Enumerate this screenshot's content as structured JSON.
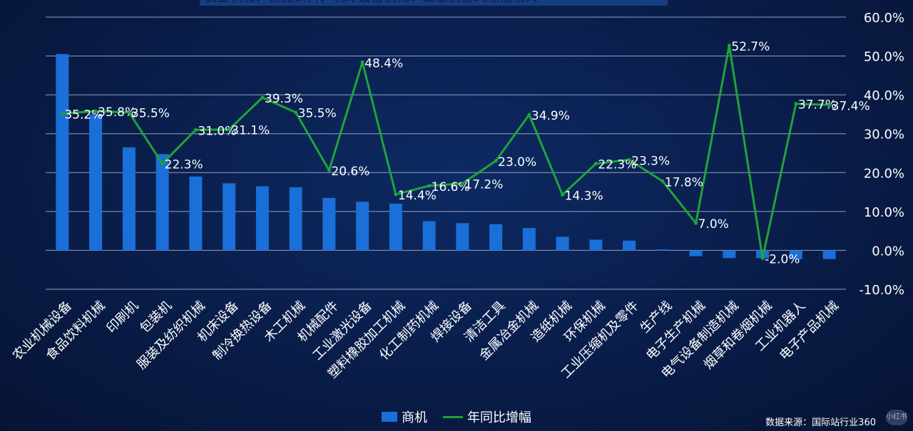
{
  "title_text": "农业机械、食品饮料、制冷设备机械、工业机器人涨幅较大",
  "source": "数据来源：国际站行业360",
  "badge": "小红书",
  "legend": {
    "bar_label": "商机",
    "line_label": "年同比增幅"
  },
  "colors": {
    "bar": "#1a6fd8",
    "line": "#1fa33a",
    "grid": "#a9b8d6",
    "text": "#ffffff"
  },
  "chart_data": {
    "type": "bar",
    "categories": [
      "农业机械设备",
      "食品饮料机械",
      "印刷机",
      "包装机",
      "服装及纺织机械",
      "机床设备",
      "制冷换热设备",
      "木工机械",
      "机械配件",
      "工业激光设备",
      "塑料橡胶加工机械",
      "化工制药机械",
      "焊接设备",
      "清洁工具",
      "金属冶金机械",
      "造纸机械",
      "环保机械",
      "工业压缩机及零件",
      "生产线",
      "电子生产机械",
      "电气设备制造机械",
      "烟草和卷烟机械",
      "工业机器人",
      "电子产品机械"
    ],
    "series": [
      {
        "name": "商机",
        "type": "bar",
        "axis": "left",
        "values": [
          101,
          70,
          53,
          49.5,
          38,
          34.5,
          33,
          32.5,
          27,
          25,
          24,
          15,
          14,
          13.5,
          11.5,
          7,
          5.5,
          5,
          0.5,
          -3,
          -4,
          -4,
          -4.5,
          -4.5
        ]
      },
      {
        "name": "年同比增幅",
        "type": "line",
        "axis": "right",
        "values": [
          35.2,
          35.8,
          35.5,
          22.3,
          31.0,
          31.1,
          39.3,
          35.5,
          20.6,
          48.4,
          14.4,
          16.6,
          17.2,
          23.0,
          34.9,
          14.3,
          22.3,
          23.3,
          17.8,
          7.0,
          52.7,
          -2.0,
          37.7,
          37.4
        ],
        "labels": [
          "35.2%",
          "35.8%",
          "35.5%",
          "22.3%",
          "31.0%",
          "31.1%",
          "39.3%",
          "35.5%",
          "20.6%",
          "48.4%",
          "14.4%",
          "16.6%",
          "17.2%",
          "23.0%",
          "34.9%",
          "14.3%",
          "22.3%",
          "23.3%",
          "17.8%",
          "7.0%",
          "52.7%",
          "-2.0%",
          "37.7%",
          "37.4%"
        ]
      }
    ],
    "y_right": {
      "ticks": [
        "-10.0%",
        "0.0%",
        "10.0%",
        "20.0%",
        "30.0%",
        "40.0%",
        "50.0%",
        "60.0%"
      ],
      "min": -10,
      "max": 60
    },
    "y_left": {
      "min": -20,
      "max": 120
    },
    "grid": true,
    "legend_position": "bottom-center"
  }
}
